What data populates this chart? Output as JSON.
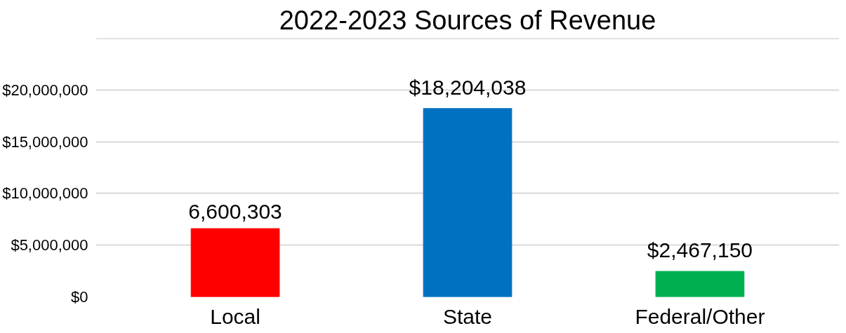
{
  "chart_data": {
    "type": "bar",
    "title": "2022-2023 Sources of Revenue",
    "categories": [
      "Local",
      "State",
      "Federal/Other"
    ],
    "values": [
      6600303,
      18204038,
      2467150
    ],
    "colors": [
      "#ff0000",
      "#0070c0",
      "#00b050"
    ],
    "value_labels": [
      "6,600,303",
      "$18,204,038",
      "$2,467,150"
    ],
    "ylim": [
      0,
      25000000
    ],
    "yticks": [
      {
        "value": 0,
        "label": "$0"
      },
      {
        "value": 5000000,
        "label": "$5,000,000"
      },
      {
        "value": 10000000,
        "label": "$10,000,000"
      },
      {
        "value": 15000000,
        "label": "$15,000,000"
      },
      {
        "value": 20000000,
        "label": "$20,000,000"
      },
      {
        "value": 25000000,
        "label": null
      }
    ],
    "grid": "y",
    "legend": false
  }
}
